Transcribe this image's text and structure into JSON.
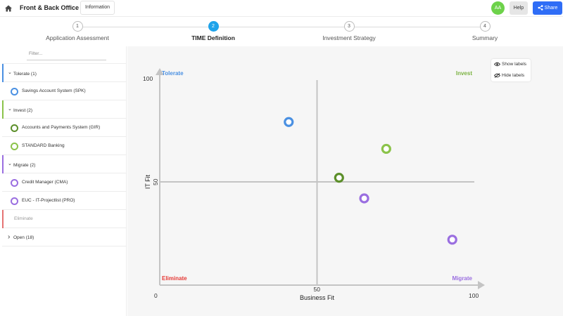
{
  "topbar": {
    "title": "Front & Back Office",
    "info_label": "Information",
    "avatar_initials": "AA",
    "help_label": "Help",
    "share_label": "Share",
    "avatar_color": "#6dd24a",
    "share_color": "#2f6df6"
  },
  "stepper": {
    "steps": [
      {
        "number": "1",
        "label": "Application Assessment",
        "active": false
      },
      {
        "number": "2",
        "label": "TIME Definition",
        "active": true
      },
      {
        "number": "3",
        "label": "Investment Strategy",
        "active": false
      },
      {
        "number": "4",
        "label": "Summary",
        "active": false
      }
    ],
    "active_color": "#1fa3ea"
  },
  "sidebar": {
    "filter_placeholder": "Filter...",
    "rows": [
      {
        "kind": "group",
        "label": "Tolerate (1)",
        "color": "#4a90e2"
      },
      {
        "kind": "item",
        "label": "Savings Account System (SPK)",
        "color": "#4a90e2"
      },
      {
        "kind": "group",
        "label": "Invest (2)",
        "color": "#8bc34a"
      },
      {
        "kind": "item",
        "label": "Accounts and Payments System (GIR)",
        "color": "#5c8f2a"
      },
      {
        "kind": "item",
        "label": "STANDARD Banking",
        "color": "#8bc34a"
      },
      {
        "kind": "group",
        "label": "Migrate (2)",
        "color": "#9a6ee0"
      },
      {
        "kind": "item",
        "label": "Credit Manager (CMA)",
        "color": "#9a6ee0"
      },
      {
        "kind": "item",
        "label": "EUC - IT-Projectlist (PRO)",
        "color": "#9a6ee0"
      },
      {
        "kind": "empty",
        "label": "Eliminate",
        "color": "#e57373"
      },
      {
        "kind": "collapsed",
        "label": "Open (18)",
        "color": ""
      }
    ]
  },
  "label_controls": {
    "show": "Show labels",
    "hide": "Hide labels"
  },
  "chart_data": {
    "type": "scatter",
    "xlabel": "Business Fit",
    "ylabel": "IT Fit",
    "xlim": [
      0,
      100
    ],
    "ylim": [
      0,
      100
    ],
    "xticks": [
      "0",
      "50",
      "100"
    ],
    "yticks": [
      "50",
      "100"
    ],
    "quadrants": [
      {
        "name": "Tolerate",
        "position": "top-left",
        "color": "#4a90e2"
      },
      {
        "name": "Invest",
        "position": "top-right",
        "color": "#7cb342"
      },
      {
        "name": "Eliminate",
        "position": "bottom-left",
        "color": "#e53935"
      },
      {
        "name": "Migrate",
        "position": "bottom-right",
        "color": "#9a6ee0"
      }
    ],
    "points": [
      {
        "x": 41,
        "y": 79,
        "color": "#4a90e2"
      },
      {
        "x": 72,
        "y": 66,
        "color": "#8bc34a"
      },
      {
        "x": 57,
        "y": 52,
        "color": "#5c8f2a"
      },
      {
        "x": 65,
        "y": 42,
        "color": "#9a6ee0"
      },
      {
        "x": 93,
        "y": 22,
        "color": "#9a6ee0"
      }
    ]
  }
}
